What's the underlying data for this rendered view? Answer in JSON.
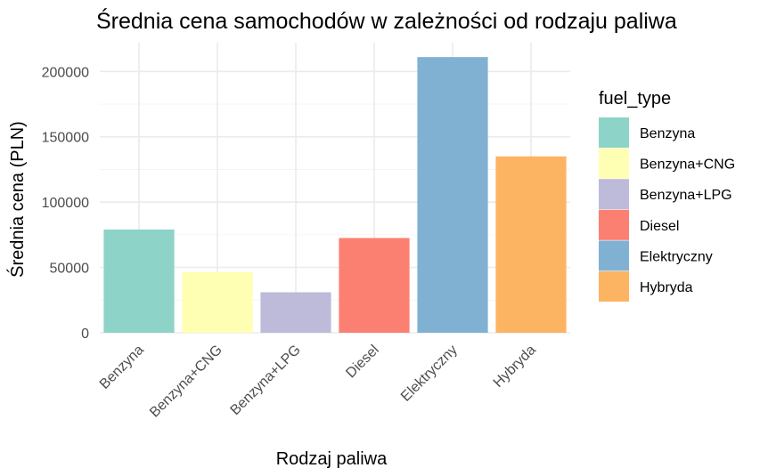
{
  "chart_data": {
    "type": "bar",
    "title": "Średnia cena samochodów w zależności od rodzaju paliwa",
    "xlabel": "Rodzaj paliwa",
    "ylabel": "Średnia cena (PLN)",
    "categories": [
      "Benzyna",
      "Benzyna+CNG",
      "Benzyna+LPG",
      "Diesel",
      "Elektryczny",
      "Hybryda"
    ],
    "values": [
      79000,
      46500,
      31000,
      72500,
      211000,
      135000
    ],
    "colors": [
      "#8dd3c7",
      "#ffffb3",
      "#bebada",
      "#fb8072",
      "#80b1d3",
      "#fdb462"
    ],
    "ylim": [
      0,
      222000
    ],
    "yticks": [
      0,
      50000,
      100000,
      150000,
      200000
    ],
    "ytick_labels": [
      "0",
      "50000",
      "100000",
      "150000",
      "200000"
    ],
    "grid": true,
    "legend": {
      "title": "fuel_type",
      "position": "right",
      "entries": [
        "Benzyna",
        "Benzyna+CNG",
        "Benzyna+LPG",
        "Diesel",
        "Elektryczny",
        "Hybryda"
      ]
    }
  }
}
